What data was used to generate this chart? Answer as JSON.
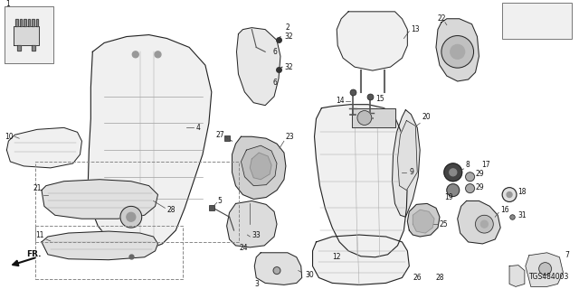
{
  "background_color": "#ffffff",
  "diagram_id": "TGS484003",
  "figsize": [
    6.4,
    3.2
  ],
  "dpi": 100,
  "text_color": "#111111",
  "label_fontsize": 5.5,
  "line_color": "#222222",
  "fill_light": "#f0f0f0",
  "fill_mid": "#e0e0e0",
  "fill_dark": "#c8c8c8"
}
